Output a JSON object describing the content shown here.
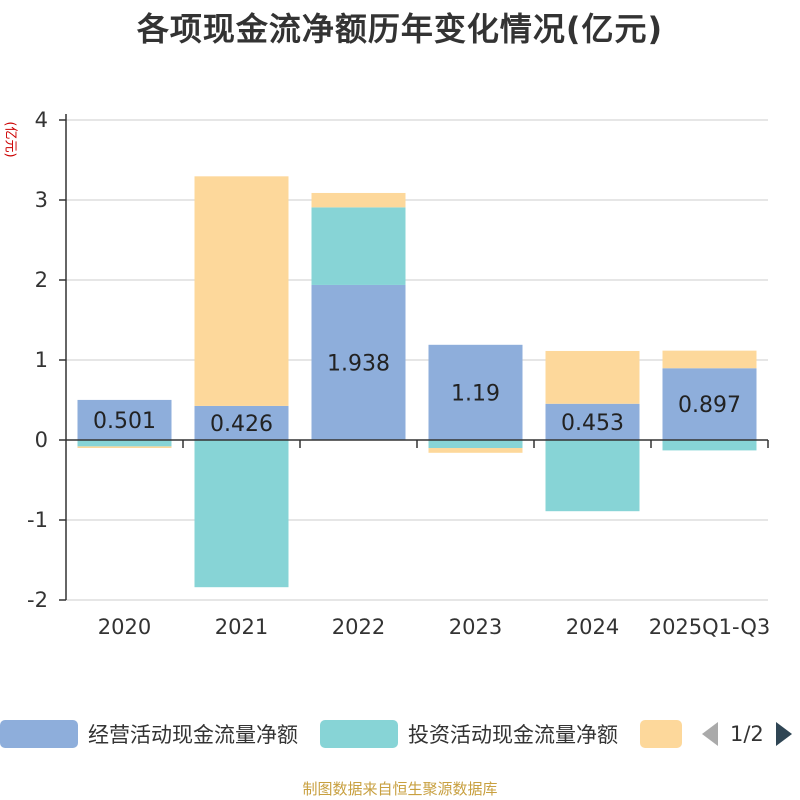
{
  "title": "各项现金流净额历年变化情况(亿元)",
  "unit_label": "(亿元)",
  "source": "制图数据来自恒生聚源数据库",
  "legend": {
    "items": [
      {
        "label": "经营活动现金流量净额",
        "color": "#8eaedb"
      },
      {
        "label": "投资活动现金流量净额",
        "color": "#87d4d6"
      },
      {
        "label": "",
        "color": "#fdd89b"
      }
    ],
    "page": "1/2"
  },
  "chart_data": {
    "type": "bar",
    "stacked": true,
    "categories": [
      "2020",
      "2021",
      "2022",
      "2023",
      "2024",
      "2025Q1-Q3"
    ],
    "ylim": [
      -2,
      4
    ],
    "yticks": [
      -2,
      -1,
      0,
      1,
      2,
      3,
      4
    ],
    "series": [
      {
        "name": "经营活动现金流量净额",
        "color": "#8eaedb",
        "values": [
          0.501,
          0.426,
          1.938,
          1.19,
          0.453,
          0.897
        ],
        "labels": [
          "0.501",
          "0.426",
          "1.938",
          "1.19",
          "0.453",
          "0.897"
        ]
      },
      {
        "name": "投资活动现金流量净额",
        "color": "#87d4d6",
        "values": [
          -0.08,
          -1.84,
          0.97,
          -0.1,
          -0.89,
          -0.13
        ]
      },
      {
        "name": "",
        "color": "#fdd89b",
        "values": [
          -0.02,
          2.87,
          0.18,
          -0.06,
          0.66,
          0.22
        ]
      }
    ]
  }
}
